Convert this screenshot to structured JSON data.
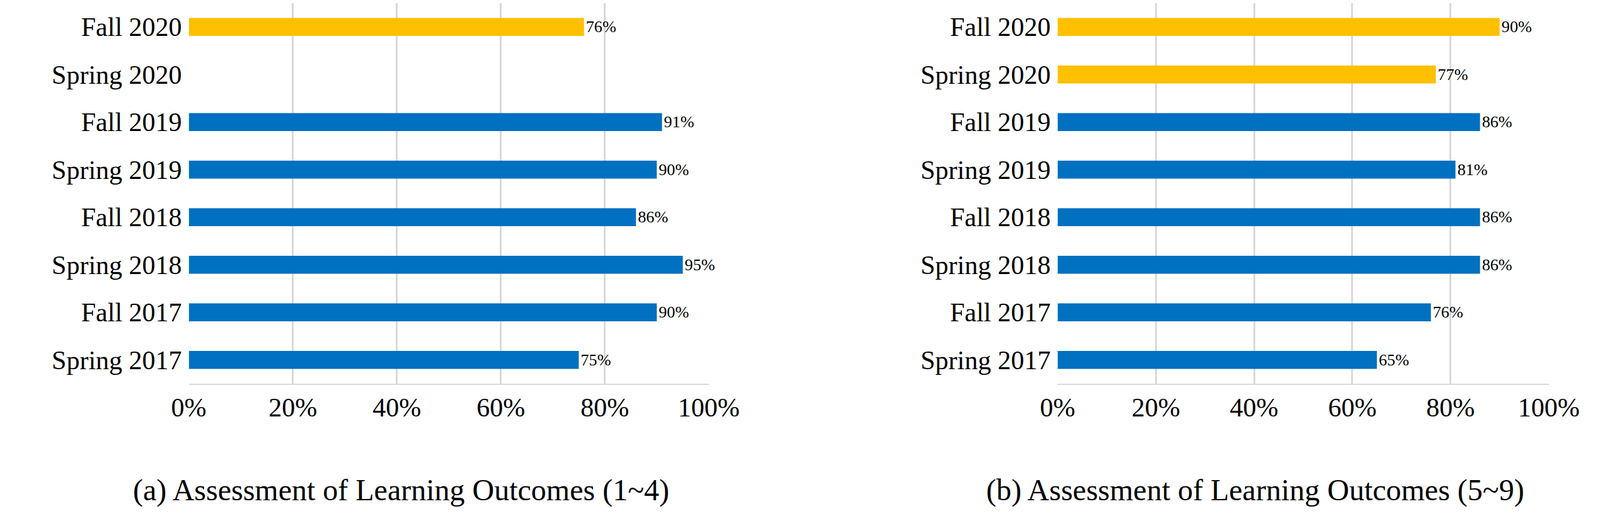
{
  "chart_data": [
    {
      "type": "bar",
      "title": "(a) Assessment of Learning Outcomes (1~4)",
      "orientation": "horizontal",
      "data_labels": true,
      "grid": true,
      "categories": [
        "Fall 2020",
        "Spring 2020",
        "Fall 2019",
        "Spring 2019",
        "Fall 2018",
        "Spring 2018",
        "Fall 2017",
        "Spring 2017"
      ],
      "values": [
        76,
        null,
        91,
        90,
        86,
        95,
        90,
        75
      ],
      "value_labels": [
        "76%",
        null,
        "91%",
        "90%",
        "86%",
        "95%",
        "90%",
        "75%"
      ],
      "colors": [
        "#FFC000",
        "#FFC000",
        "#0070C0",
        "#0070C0",
        "#0070C0",
        "#0070C0",
        "#0070C0",
        "#0070C0"
      ],
      "xlim": [
        0,
        100
      ],
      "xticks": [
        {
          "value": 0,
          "label": "0%"
        },
        {
          "value": 20,
          "label": "20%"
        },
        {
          "value": 40,
          "label": "40%"
        },
        {
          "value": 60,
          "label": "60%"
        },
        {
          "value": 80,
          "label": "80%"
        },
        {
          "value": 100,
          "label": "100%"
        }
      ]
    },
    {
      "type": "bar",
      "title": "(b) Assessment of Learning Outcomes (5~9)",
      "orientation": "horizontal",
      "data_labels": true,
      "grid": true,
      "categories": [
        "Fall 2020",
        "Spring 2020",
        "Fall 2019",
        "Spring 2019",
        "Fall 2018",
        "Spring 2018",
        "Fall 2017",
        "Spring 2017"
      ],
      "values": [
        90,
        77,
        86,
        81,
        86,
        86,
        76,
        65
      ],
      "value_labels": [
        "90%",
        "77%",
        "86%",
        "81%",
        "86%",
        "86%",
        "76%",
        "65%"
      ],
      "colors": [
        "#FFC000",
        "#FFC000",
        "#0070C0",
        "#0070C0",
        "#0070C0",
        "#0070C0",
        "#0070C0",
        "#0070C0"
      ],
      "xlim": [
        0,
        100
      ],
      "xticks": [
        {
          "value": 0,
          "label": "0%"
        },
        {
          "value": 20,
          "label": "20%"
        },
        {
          "value": 40,
          "label": "40%"
        },
        {
          "value": 60,
          "label": "60%"
        },
        {
          "value": 80,
          "label": "80%"
        },
        {
          "value": 100,
          "label": "100%"
        }
      ]
    }
  ]
}
